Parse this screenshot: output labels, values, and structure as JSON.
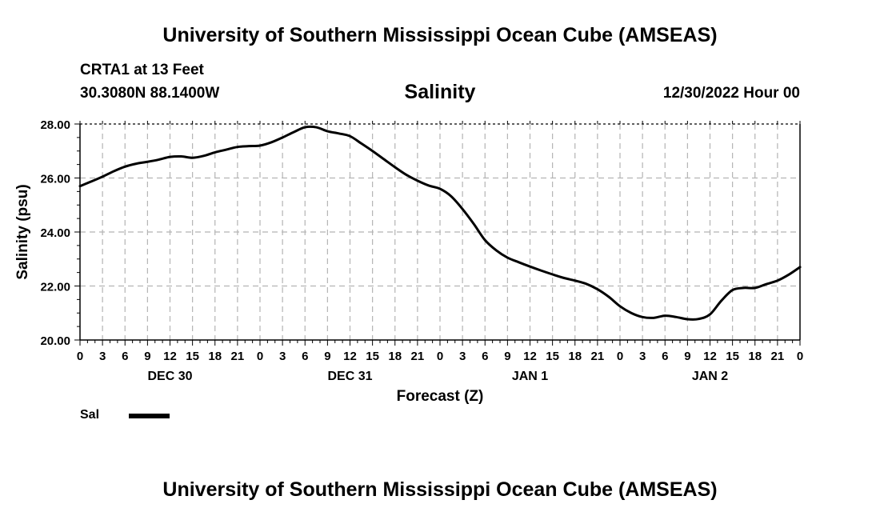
{
  "header": {
    "title": "University of Southern Mississippi Ocean Cube (AMSEAS)",
    "station": "CRTA1 at 13 Feet",
    "coordinates": "30.3080N  88.1400W",
    "variable": "Salinity",
    "datetime": "12/30/2022 Hour 00"
  },
  "footer": {
    "title": "University of Southern Mississippi Ocean Cube (AMSEAS)"
  },
  "legend": {
    "label": "Sal",
    "color": "#000000"
  },
  "chart_data": {
    "type": "line",
    "title": "Salinity",
    "xlabel": "Forecast (Z)",
    "ylabel": "Salinity (psu)",
    "xlim": [
      0,
      96
    ],
    "ylim": [
      20,
      28
    ],
    "yticks": [
      20,
      22,
      24,
      26,
      28
    ],
    "ytick_labels": [
      "20.00",
      "22.00",
      "24.00",
      "26.00",
      "28.00"
    ],
    "x_tick_step": 3,
    "xtick_labels": [
      "0",
      "3",
      "6",
      "9",
      "12",
      "15",
      "18",
      "21",
      "0",
      "3",
      "6",
      "9",
      "12",
      "15",
      "18",
      "21",
      "0",
      "3",
      "6",
      "9",
      "12",
      "15",
      "18",
      "21",
      "0",
      "3",
      "6",
      "9",
      "12",
      "15",
      "18",
      "21",
      "0"
    ],
    "date_labels": [
      {
        "x": 12,
        "label": "DEC 30"
      },
      {
        "x": 36,
        "label": "DEC 31"
      },
      {
        "x": 60,
        "label": "JAN 1"
      },
      {
        "x": 84,
        "label": "JAN 2"
      }
    ],
    "grid": true,
    "series": [
      {
        "name": "Sal",
        "x": [
          0,
          1.5,
          3,
          4.5,
          6,
          7.5,
          9,
          10.5,
          12,
          13.5,
          15,
          16.5,
          18,
          19.5,
          21,
          22.5,
          24,
          25.5,
          27,
          28.5,
          30,
          31.5,
          33,
          34.5,
          36,
          37.5,
          39,
          40.5,
          42,
          43.5,
          45,
          46.5,
          48,
          49.5,
          51,
          52.5,
          54,
          55.5,
          57,
          58.5,
          60,
          61.5,
          63,
          64.5,
          66,
          67.5,
          69,
          70.5,
          72,
          73.5,
          75,
          76.5,
          78,
          79.5,
          81,
          82.5,
          84,
          85.5,
          87,
          88.5,
          90,
          91.5,
          93,
          94.5,
          96
        ],
        "values": [
          25.7,
          25.87,
          26.05,
          26.25,
          26.42,
          26.53,
          26.6,
          26.68,
          26.78,
          26.8,
          26.75,
          26.82,
          26.95,
          27.05,
          27.15,
          27.18,
          27.2,
          27.32,
          27.5,
          27.7,
          27.88,
          27.88,
          27.73,
          27.65,
          27.55,
          27.28,
          27.0,
          26.7,
          26.4,
          26.12,
          25.9,
          25.72,
          25.6,
          25.32,
          24.85,
          24.3,
          23.7,
          23.32,
          23.05,
          22.88,
          22.72,
          22.57,
          22.43,
          22.3,
          22.2,
          22.08,
          21.88,
          21.6,
          21.25,
          21.0,
          20.85,
          20.82,
          20.9,
          20.85,
          20.77,
          20.78,
          20.95,
          21.45,
          21.85,
          21.93,
          21.93,
          22.07,
          22.2,
          22.42,
          22.7
        ]
      }
    ]
  }
}
